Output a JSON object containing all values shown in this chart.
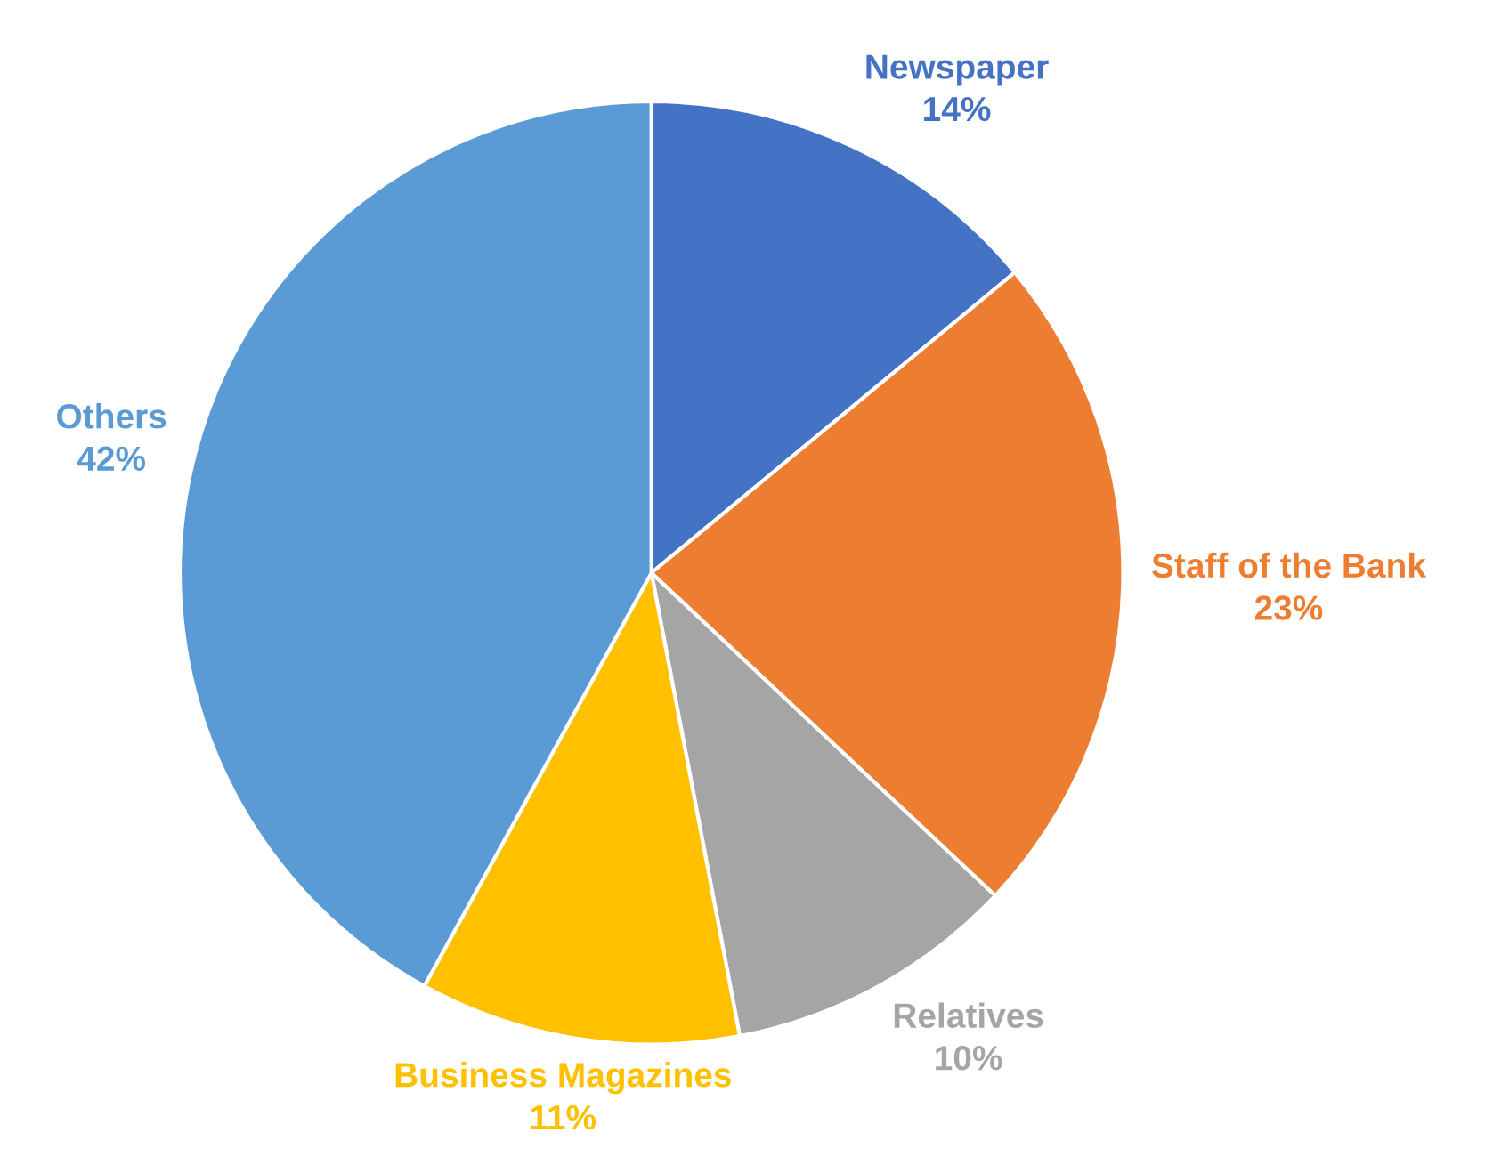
{
  "chart_data": {
    "type": "pie",
    "categories": [
      "Newspaper",
      "Staff of the Bank",
      "Relatives",
      "Business Magazines",
      "Others"
    ],
    "values": [
      14,
      23,
      10,
      11,
      42
    ],
    "value_labels": [
      "14%",
      "23%",
      "10%",
      "11%",
      "42%"
    ],
    "colors": [
      "#4472c4",
      "#ed7d31",
      "#a5a5a5",
      "#ffc000",
      "#5b9bd5"
    ],
    "legend": false
  }
}
